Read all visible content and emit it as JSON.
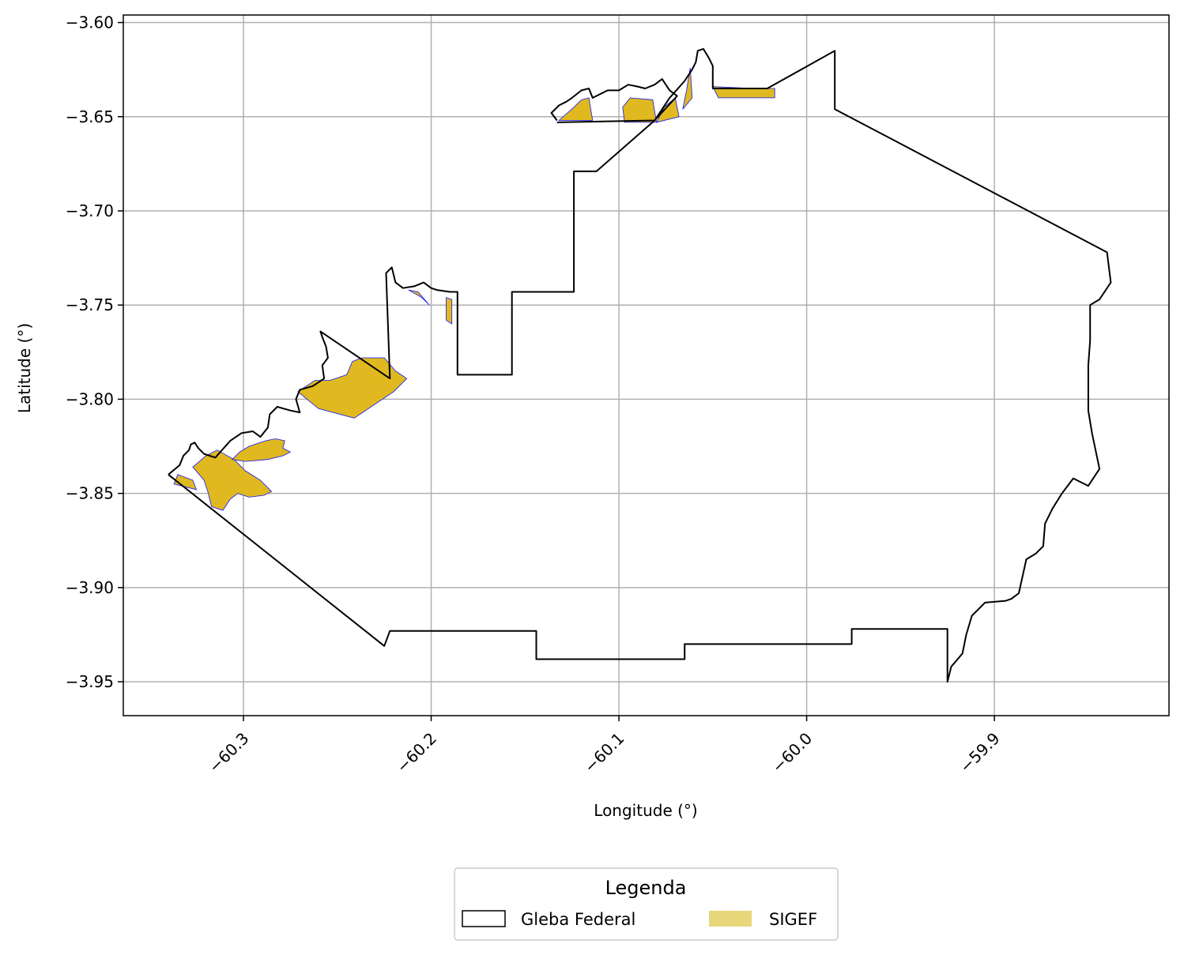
{
  "chart_data": {
    "type": "map",
    "xlabel": "Longitude (°)",
    "ylabel": "Latitude (°)",
    "xlim": [
      -60.364,
      -59.807
    ],
    "ylim": [
      -3.968,
      -3.596
    ],
    "xticks": [
      -60.3,
      -60.2,
      -60.1,
      -60.0,
      -59.9
    ],
    "yticks": [
      -3.6,
      -3.65,
      -3.7,
      -3.75,
      -3.8,
      -3.85,
      -3.9,
      -3.95
    ],
    "xtick_labels": [
      "−60.3",
      "−60.2",
      "−60.1",
      "−60.0",
      "−59.9"
    ],
    "ytick_labels": [
      "−3.60",
      "−3.65",
      "−3.70",
      "−3.75",
      "−3.80",
      "−3.85",
      "−3.90",
      "−3.95"
    ],
    "grid": true,
    "legend": {
      "title": "Legenda",
      "placement": "bottom-center",
      "entries": [
        {
          "label": "Gleba Federal",
          "style": "outline",
          "color": "#000000"
        },
        {
          "label": "SIGEF",
          "style": "fill",
          "color": "#e8d67a"
        }
      ]
    },
    "colors": {
      "gleba_edge": "#000000",
      "sigef_fill": "#dfb91f",
      "sigef_edge": "#1414ff",
      "grid": "#b0b0b0"
    },
    "gleba_federal": [
      [
        -60.34,
        -3.84
      ],
      [
        -60.334,
        -3.835
      ],
      [
        -60.332,
        -3.83
      ],
      [
        -60.329,
        -3.827
      ],
      [
        -60.328,
        -3.824
      ],
      [
        -60.326,
        -3.823
      ],
      [
        -60.324,
        -3.826
      ],
      [
        -60.321,
        -3.829
      ],
      [
        -60.315,
        -3.831
      ],
      [
        -60.307,
        -3.822
      ],
      [
        -60.301,
        -3.818
      ],
      [
        -60.295,
        -3.817
      ],
      [
        -60.291,
        -3.82
      ],
      [
        -60.287,
        -3.815
      ],
      [
        -60.286,
        -3.808
      ],
      [
        -60.282,
        -3.804
      ],
      [
        -60.275,
        -3.806
      ],
      [
        -60.27,
        -3.807
      ],
      [
        -60.272,
        -3.8
      ],
      [
        -60.27,
        -3.795
      ],
      [
        -60.263,
        -3.793
      ],
      [
        -60.257,
        -3.789
      ],
      [
        -60.258,
        -3.782
      ],
      [
        -60.255,
        -3.778
      ],
      [
        -60.256,
        -3.772
      ],
      [
        -60.258,
        -3.767
      ],
      [
        -60.259,
        -3.764
      ],
      [
        -60.222,
        -3.789
      ],
      [
        -60.224,
        -3.733
      ],
      [
        -60.221,
        -3.73
      ],
      [
        -60.219,
        -3.738
      ],
      [
        -60.215,
        -3.741
      ],
      [
        -60.209,
        -3.74
      ],
      [
        -60.204,
        -3.738
      ],
      [
        -60.2,
        -3.741
      ],
      [
        -60.197,
        -3.742
      ],
      [
        -60.19,
        -3.743
      ],
      [
        -60.186,
        -3.743
      ],
      [
        -60.186,
        -3.787
      ],
      [
        -60.157,
        -3.787
      ],
      [
        -60.157,
        -3.743
      ],
      [
        -60.124,
        -3.743
      ],
      [
        -60.124,
        -3.679
      ],
      [
        -60.112,
        -3.679
      ],
      [
        -60.081,
        -3.652
      ],
      [
        -60.073,
        -3.64
      ],
      [
        -60.065,
        -3.631
      ],
      [
        -60.061,
        -3.625
      ],
      [
        -60.059,
        -3.621
      ],
      [
        -60.058,
        -3.615
      ],
      [
        -60.055,
        -3.614
      ],
      [
        -60.052,
        -3.619
      ],
      [
        -60.05,
        -3.623
      ],
      [
        -60.05,
        -3.635
      ],
      [
        -60.021,
        -3.635
      ],
      [
        -59.985,
        -3.615
      ],
      [
        -59.985,
        -3.646
      ],
      [
        -59.84,
        -3.722
      ],
      [
        -59.838,
        -3.738
      ],
      [
        -59.844,
        -3.747
      ],
      [
        -59.849,
        -3.75
      ],
      [
        -59.849,
        -3.769
      ],
      [
        -59.85,
        -3.782
      ],
      [
        -59.85,
        -3.806
      ],
      [
        -59.848,
        -3.818
      ],
      [
        -59.844,
        -3.837
      ],
      [
        -59.85,
        -3.846
      ],
      [
        -59.858,
        -3.842
      ],
      [
        -59.864,
        -3.85
      ],
      [
        -59.869,
        -3.858
      ],
      [
        -59.873,
        -3.866
      ],
      [
        -59.874,
        -3.878
      ],
      [
        -59.878,
        -3.882
      ],
      [
        -59.883,
        -3.885
      ],
      [
        -59.887,
        -3.903
      ],
      [
        -59.891,
        -3.906
      ],
      [
        -59.894,
        -3.907
      ],
      [
        -59.905,
        -3.908
      ],
      [
        -59.912,
        -3.915
      ],
      [
        -59.915,
        -3.925
      ],
      [
        -59.917,
        -3.935
      ],
      [
        -59.923,
        -3.942
      ],
      [
        -59.925,
        -3.95
      ],
      [
        -59.925,
        -3.922
      ],
      [
        -59.976,
        -3.922
      ],
      [
        -59.976,
        -3.93
      ],
      [
        -60.065,
        -3.93
      ],
      [
        -60.065,
        -3.938
      ],
      [
        -60.144,
        -3.938
      ],
      [
        -60.144,
        -3.923
      ],
      [
        -60.222,
        -3.923
      ],
      [
        -60.225,
        -3.931
      ],
      [
        -60.34,
        -3.84
      ]
    ],
    "gleba_fragment": [
      [
        -60.133,
        -3.652
      ],
      [
        -60.136,
        -3.648
      ],
      [
        -60.132,
        -3.644
      ],
      [
        -60.128,
        -3.642
      ],
      [
        -60.125,
        -3.64
      ],
      [
        -60.12,
        -3.636
      ],
      [
        -60.116,
        -3.635
      ],
      [
        -60.114,
        -3.64
      ],
      [
        -60.11,
        -3.638
      ],
      [
        -60.106,
        -3.636
      ],
      [
        -60.1,
        -3.636
      ],
      [
        -60.095,
        -3.633
      ],
      [
        -60.09,
        -3.634
      ],
      [
        -60.086,
        -3.635
      ],
      [
        -60.081,
        -3.633
      ],
      [
        -60.077,
        -3.63
      ],
      [
        -60.073,
        -3.636
      ],
      [
        -60.069,
        -3.639
      ],
      [
        -60.081,
        -3.652
      ],
      [
        -60.133,
        -3.653
      ]
    ],
    "sigef_parcels": [
      [
        [
          -60.132,
          -3.652
        ],
        [
          -60.124,
          -3.645
        ],
        [
          -60.12,
          -3.641
        ],
        [
          -60.116,
          -3.64
        ],
        [
          -60.114,
          -3.652
        ]
      ],
      [
        [
          -60.097,
          -3.653
        ],
        [
          -60.098,
          -3.645
        ],
        [
          -60.094,
          -3.64
        ],
        [
          -60.082,
          -3.641
        ],
        [
          -60.08,
          -3.653
        ]
      ],
      [
        [
          -60.08,
          -3.653
        ],
        [
          -60.076,
          -3.645
        ],
        [
          -60.07,
          -3.64
        ],
        [
          -60.068,
          -3.65
        ]
      ],
      [
        [
          -60.066,
          -3.646
        ],
        [
          -60.064,
          -3.636
        ],
        [
          -60.062,
          -3.624
        ],
        [
          -60.061,
          -3.64
        ]
      ],
      [
        [
          -60.05,
          -3.634
        ],
        [
          -60.028,
          -3.635
        ],
        [
          -60.017,
          -3.635
        ],
        [
          -60.017,
          -3.64
        ],
        [
          -60.047,
          -3.64
        ]
      ],
      [
        [
          -60.212,
          -3.742
        ],
        [
          -60.207,
          -3.743
        ],
        [
          -60.201,
          -3.75
        ],
        [
          -60.205,
          -3.746
        ]
      ],
      [
        [
          -60.192,
          -3.746
        ],
        [
          -60.189,
          -3.747
        ],
        [
          -60.189,
          -3.76
        ],
        [
          -60.192,
          -3.758
        ]
      ],
      [
        [
          -60.271,
          -3.796
        ],
        [
          -60.262,
          -3.79
        ],
        [
          -60.254,
          -3.79
        ],
        [
          -60.245,
          -3.787
        ],
        [
          -60.242,
          -3.78
        ],
        [
          -60.237,
          -3.778
        ],
        [
          -60.225,
          -3.778
        ],
        [
          -60.219,
          -3.785
        ],
        [
          -60.213,
          -3.789
        ],
        [
          -60.22,
          -3.796
        ],
        [
          -60.241,
          -3.81
        ],
        [
          -60.26,
          -3.805
        ]
      ],
      [
        [
          -60.335,
          -3.84
        ],
        [
          -60.327,
          -3.843
        ],
        [
          -60.325,
          -3.848
        ],
        [
          -60.337,
          -3.845
        ]
      ],
      [
        [
          -60.327,
          -3.836
        ],
        [
          -60.32,
          -3.83
        ],
        [
          -60.314,
          -3.827
        ],
        [
          -60.305,
          -3.832
        ],
        [
          -60.299,
          -3.838
        ],
        [
          -60.291,
          -3.843
        ],
        [
          -60.285,
          -3.849
        ],
        [
          -60.289,
          -3.851
        ],
        [
          -60.297,
          -3.852
        ],
        [
          -60.303,
          -3.85
        ],
        [
          -60.307,
          -3.853
        ],
        [
          -60.311,
          -3.859
        ],
        [
          -60.317,
          -3.857
        ],
        [
          -60.319,
          -3.849
        ],
        [
          -60.321,
          -3.843
        ]
      ],
      [
        [
          -60.306,
          -3.832
        ],
        [
          -60.302,
          -3.828
        ],
        [
          -60.297,
          -3.825
        ],
        [
          -60.288,
          -3.822
        ],
        [
          -60.283,
          -3.821
        ],
        [
          -60.278,
          -3.822
        ],
        [
          -60.279,
          -3.826
        ],
        [
          -60.275,
          -3.828
        ],
        [
          -60.279,
          -3.83
        ],
        [
          -60.287,
          -3.832
        ],
        [
          -60.299,
          -3.833
        ]
      ]
    ]
  }
}
